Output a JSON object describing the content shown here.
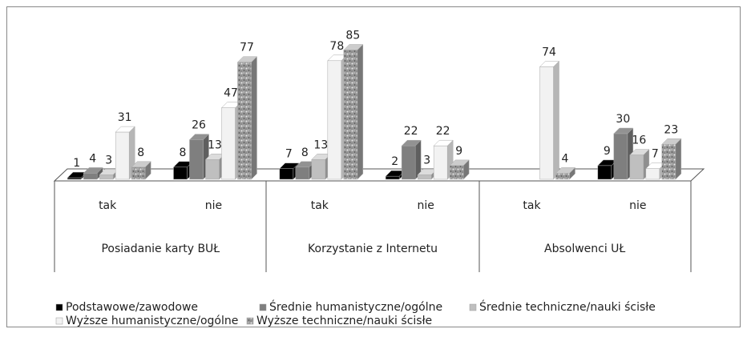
{
  "chart_data": {
    "type": "bar3d",
    "categories": [
      "tak",
      "nie",
      "tak",
      "nie",
      "tak",
      "nie"
    ],
    "category_groups": [
      "Posiadanie karty BUŁ",
      "Korzystanie z Internetu",
      "Absolwenci UŁ"
    ],
    "series": [
      {
        "name": "Podstawowe/zawodowe",
        "color": "#000000",
        "values": [
          1,
          8,
          7,
          2,
          null,
          9
        ]
      },
      {
        "name": "Średnie humanistyczne/ogólne",
        "color": "#7f7f7f",
        "values": [
          4,
          26,
          8,
          22,
          null,
          30
        ]
      },
      {
        "name": "Średnie techniczne/nauki ścisłe",
        "color": "#bfbfbf",
        "values": [
          3,
          13,
          13,
          3,
          null,
          16
        ]
      },
      {
        "name": "Wyższe humanistyczne/ogólne",
        "color": "#f2f2f2",
        "values": [
          31,
          47,
          78,
          22,
          74,
          7
        ]
      },
      {
        "name": "Wyższe techniczne/nauki ścisłe",
        "color": "#a6a6a6",
        "pattern": "speckled",
        "values": [
          8,
          77,
          85,
          9,
          4,
          23
        ]
      }
    ],
    "legend": "bottom"
  }
}
